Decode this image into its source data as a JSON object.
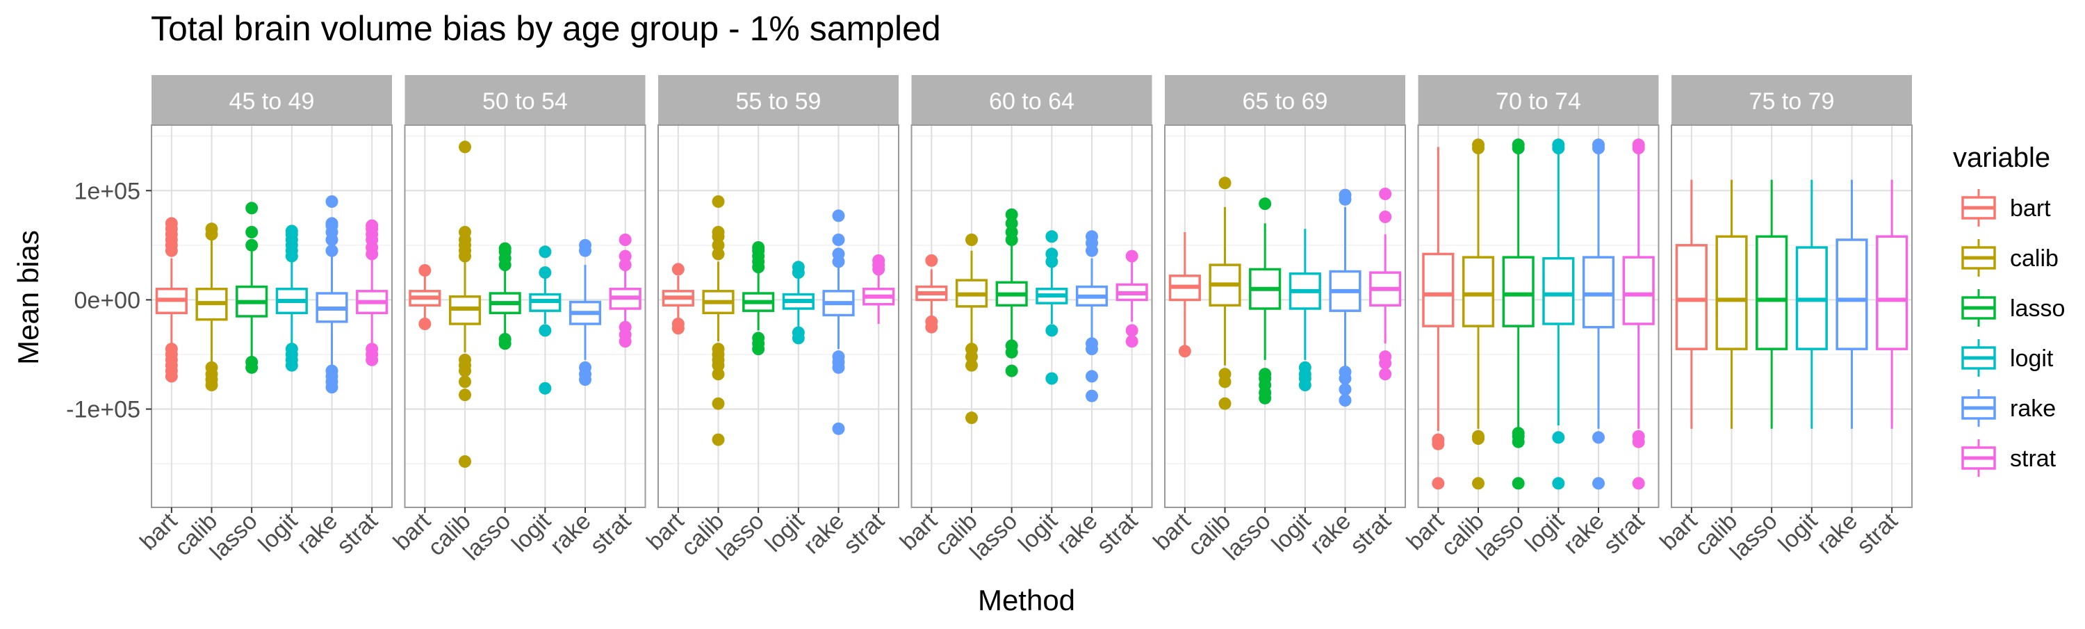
{
  "chart_data": {
    "type": "boxplot",
    "title": "Total brain volume bias by age group - 1% sampled",
    "xlabel": "Method",
    "ylabel": "Mean bias",
    "ylim": [
      -190000,
      160000
    ],
    "yticks": [
      {
        "value": 100000,
        "label": "1e+05"
      },
      {
        "value": 0,
        "label": "0e+00"
      },
      {
        "value": -100000,
        "label": "-1e+05"
      }
    ],
    "categories": [
      "bart",
      "calib",
      "lasso",
      "logit",
      "rake",
      "strat"
    ],
    "legend": {
      "title": "variable",
      "position": "right",
      "entries": [
        "bart",
        "calib",
        "lasso",
        "logit",
        "rake",
        "strat"
      ]
    },
    "colors": {
      "bart": "#F8766D",
      "calib": "#B79F00",
      "lasso": "#00BA38",
      "logit": "#00BFC4",
      "rake": "#619CFF",
      "strat": "#F564E3",
      "strip": "#B3B3B3",
      "strip_text": "#FFFFFF",
      "grid_major": "#DEDEDE",
      "grid_minor": "#F0F0F0",
      "panel_border": "#999999"
    },
    "panels": [
      {
        "label": "45 to 49",
        "boxes": [
          {
            "q1": -12000,
            "median": 0,
            "q3": 10000,
            "lo": -40000,
            "hi": 38000,
            "out": [
              45000,
              50000,
              55000,
              60000,
              65000,
              70000,
              -45000,
              -50000,
              -55000,
              -60000,
              -65000,
              -70000
            ]
          },
          {
            "q1": -18000,
            "median": -3000,
            "q3": 10000,
            "lo": -58000,
            "hi": 55000,
            "out": [
              60000,
              65000,
              -62000,
              -68000,
              -73000,
              -78000
            ]
          },
          {
            "q1": -15000,
            "median": -2000,
            "q3": 12000,
            "lo": -55000,
            "hi": 45000,
            "out": [
              50000,
              62000,
              84000,
              -57000,
              -62000
            ]
          },
          {
            "q1": -12000,
            "median": -1000,
            "q3": 10000,
            "lo": -40000,
            "hi": 35000,
            "out": [
              40000,
              45000,
              50000,
              55000,
              60000,
              63000,
              -45000,
              -50000,
              -55000,
              -60000
            ]
          },
          {
            "q1": -20000,
            "median": -8000,
            "q3": 6000,
            "lo": -60000,
            "hi": 40000,
            "out": [
              45000,
              55000,
              62000,
              68000,
              70000,
              90000,
              -65000,
              -70000,
              -75000,
              -80000
            ]
          },
          {
            "q1": -12000,
            "median": -2000,
            "q3": 8000,
            "lo": -42000,
            "hi": 38000,
            "out": [
              42000,
              48000,
              55000,
              60000,
              65000,
              68000,
              -45000,
              -50000,
              -55000
            ]
          }
        ]
      },
      {
        "label": "50 to 54",
        "boxes": [
          {
            "q1": -5000,
            "median": 2000,
            "q3": 8000,
            "lo": -20000,
            "hi": 26000,
            "out": [
              27000,
              -22000
            ]
          },
          {
            "q1": -22000,
            "median": -8000,
            "q3": 3000,
            "lo": -48000,
            "hi": 35000,
            "out": [
              40000,
              45000,
              50000,
              55000,
              62000,
              140000,
              -55000,
              -60000,
              -65000,
              -75000,
              -87000,
              -148000
            ]
          },
          {
            "q1": -12000,
            "median": -3000,
            "q3": 6000,
            "lo": -32000,
            "hi": 28000,
            "out": [
              32000,
              38000,
              44000,
              47000,
              -36000,
              -40000
            ]
          },
          {
            "q1": -10000,
            "median": -1000,
            "q3": 5000,
            "lo": -22000,
            "hi": 20000,
            "out": [
              25000,
              44000,
              -28000,
              -81000
            ]
          },
          {
            "q1": -22000,
            "median": -12000,
            "q3": -2000,
            "lo": -55000,
            "hi": 32000,
            "out": [
              45000,
              50000,
              -62000,
              -68000,
              -73000
            ]
          },
          {
            "q1": -8000,
            "median": 2000,
            "q3": 10000,
            "lo": -20000,
            "hi": 28000,
            "out": [
              32000,
              40000,
              55000,
              -25000,
              -32000,
              -38000
            ]
          }
        ]
      },
      {
        "label": "55 to 59",
        "boxes": [
          {
            "q1": -5000,
            "median": 2000,
            "q3": 8000,
            "lo": -18000,
            "hi": 22000,
            "out": [
              28000,
              -22000,
              -26000
            ]
          },
          {
            "q1": -12000,
            "median": -2000,
            "q3": 8000,
            "lo": -38000,
            "hi": 35000,
            "out": [
              42000,
              50000,
              58000,
              62000,
              90000,
              -45000,
              -50000,
              -55000,
              -60000,
              -68000,
              -95000,
              -128000
            ]
          },
          {
            "q1": -10000,
            "median": -2000,
            "q3": 6000,
            "lo": -28000,
            "hi": 25000,
            "out": [
              30000,
              35000,
              40000,
              45000,
              48000,
              -35000,
              -40000,
              -45000
            ]
          },
          {
            "q1": -8000,
            "median": -1000,
            "q3": 5000,
            "lo": -25000,
            "hi": 20000,
            "out": [
              25000,
              30000,
              -30000,
              -35000
            ]
          },
          {
            "q1": -14000,
            "median": -3000,
            "q3": 8000,
            "lo": -45000,
            "hi": 30000,
            "out": [
              35000,
              42000,
              55000,
              77000,
              -52000,
              -57000,
              -62000,
              -118000
            ]
          },
          {
            "q1": -4000,
            "median": 3000,
            "q3": 10000,
            "lo": -22000,
            "hi": 25000,
            "out": [
              28000,
              32000,
              36000
            ]
          }
        ]
      },
      {
        "label": "60 to 64",
        "boxes": [
          {
            "q1": 0,
            "median": 6000,
            "q3": 12000,
            "lo": -18000,
            "hi": 28000,
            "out": [
              36000,
              -20000,
              -25000
            ]
          },
          {
            "q1": -6000,
            "median": 5000,
            "q3": 18000,
            "lo": -40000,
            "hi": 45000,
            "out": [
              55000,
              -45000,
              -52000,
              -60000,
              -108000
            ]
          },
          {
            "q1": -5000,
            "median": 5000,
            "q3": 16000,
            "lo": -38000,
            "hi": 50000,
            "out": [
              55000,
              62000,
              70000,
              78000,
              -42000,
              -48000,
              -65000
            ]
          },
          {
            "q1": -3000,
            "median": 4000,
            "q3": 10000,
            "lo": -22000,
            "hi": 30000,
            "out": [
              35000,
              42000,
              58000,
              -28000,
              -72000
            ]
          },
          {
            "q1": -5000,
            "median": 3000,
            "q3": 12000,
            "lo": -35000,
            "hi": 38000,
            "out": [
              45000,
              52000,
              58000,
              -40000,
              -45000,
              -70000,
              -88000
            ]
          },
          {
            "q1": 0,
            "median": 6000,
            "q3": 14000,
            "lo": -20000,
            "hi": 35000,
            "out": [
              40000,
              -28000,
              -38000
            ]
          }
        ]
      },
      {
        "label": "65 to 69",
        "boxes": [
          {
            "q1": 0,
            "median": 12000,
            "q3": 22000,
            "lo": -42000,
            "hi": 62000,
            "out": [
              -47000
            ]
          },
          {
            "q1": -5000,
            "median": 14000,
            "q3": 32000,
            "lo": -60000,
            "hi": 85000,
            "out": [
              107000,
              -68000,
              -75000,
              -95000
            ]
          },
          {
            "q1": -8000,
            "median": 10000,
            "q3": 28000,
            "lo": -55000,
            "hi": 70000,
            "out": [
              88000,
              -68000,
              -72000,
              -78000,
              -85000,
              -90000
            ]
          },
          {
            "q1": -8000,
            "median": 8000,
            "q3": 24000,
            "lo": -55000,
            "hi": 65000,
            "out": [
              -62000,
              -68000,
              -72000,
              -78000
            ]
          },
          {
            "q1": -10000,
            "median": 8000,
            "q3": 26000,
            "lo": -62000,
            "hi": 85000,
            "out": [
              92000,
              96000,
              -66000,
              -72000,
              -82000,
              -92000
            ]
          },
          {
            "q1": -5000,
            "median": 10000,
            "q3": 25000,
            "lo": -40000,
            "hi": 60000,
            "out": [
              76000,
              97000,
              -52000,
              -58000,
              -68000
            ]
          }
        ]
      },
      {
        "label": "70 to 74",
        "boxes": [
          {
            "q1": -24000,
            "median": 5000,
            "q3": 42000,
            "lo": -120000,
            "hi": 140000,
            "out": [
              -128000,
              -132000,
              -168000
            ]
          },
          {
            "q1": -24000,
            "median": 5000,
            "q3": 39000,
            "lo": -118000,
            "hi": 135000,
            "out": [
              139000,
              142000,
              -125000,
              -127000,
              -168000
            ]
          },
          {
            "q1": -24000,
            "median": 5000,
            "q3": 39000,
            "lo": -118000,
            "hi": 135000,
            "out": [
              139000,
              142000,
              -122000,
              -125000,
              -130000,
              -168000
            ]
          },
          {
            "q1": -22000,
            "median": 5000,
            "q3": 38000,
            "lo": -115000,
            "hi": 135000,
            "out": [
              139000,
              142000,
              -126000,
              -168000
            ]
          },
          {
            "q1": -25000,
            "median": 5000,
            "q3": 39000,
            "lo": -118000,
            "hi": 135000,
            "out": [
              139000,
              142000,
              -126000,
              -168000
            ]
          },
          {
            "q1": -22000,
            "median": 5000,
            "q3": 39000,
            "lo": -118000,
            "hi": 135000,
            "out": [
              139000,
              142000,
              -125000,
              -130000,
              -168000
            ]
          }
        ]
      },
      {
        "label": "75 to 79",
        "boxes": [
          {
            "q1": -45000,
            "median": 0,
            "q3": 50000,
            "lo": -118000,
            "hi": 110000,
            "out": []
          },
          {
            "q1": -45000,
            "median": 0,
            "q3": 58000,
            "lo": -118000,
            "hi": 110000,
            "out": []
          },
          {
            "q1": -45000,
            "median": 0,
            "q3": 58000,
            "lo": -118000,
            "hi": 110000,
            "out": []
          },
          {
            "q1": -45000,
            "median": 0,
            "q3": 48000,
            "lo": -118000,
            "hi": 110000,
            "out": []
          },
          {
            "q1": -45000,
            "median": 0,
            "q3": 55000,
            "lo": -118000,
            "hi": 110000,
            "out": []
          },
          {
            "q1": -45000,
            "median": 0,
            "q3": 58000,
            "lo": -118000,
            "hi": 110000,
            "out": []
          }
        ]
      }
    ]
  }
}
